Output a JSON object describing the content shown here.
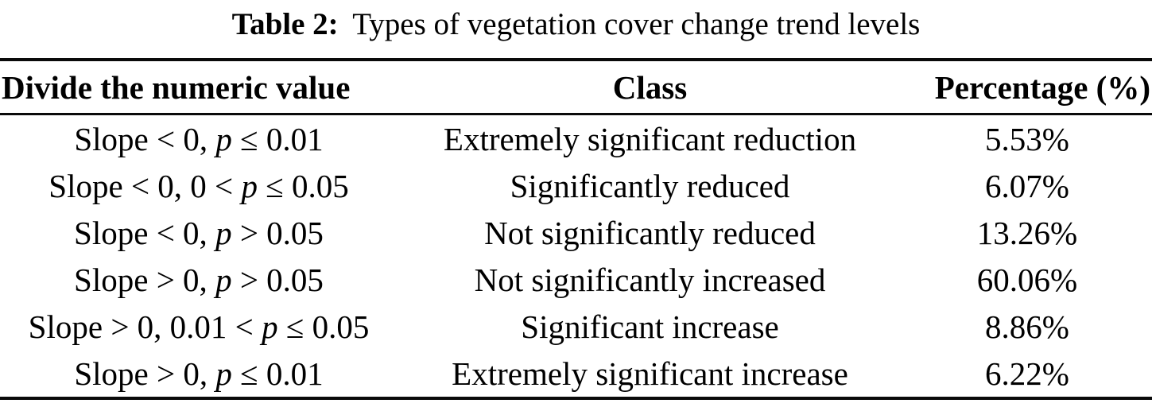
{
  "caption": {
    "label": "Table 2:",
    "text": "Types of vegetation cover change trend levels"
  },
  "table": {
    "headers": {
      "condition": "Divide the numeric value",
      "class": "Class",
      "percentage": "Percentage (%)"
    },
    "rows": [
      {
        "condition": {
          "before": "Slope < 0, ",
          "var": "p",
          "after": " ≤ 0.01"
        },
        "class": "Extremely significant reduction",
        "percentage": "5.53%"
      },
      {
        "condition": {
          "before": "Slope < 0, 0 < ",
          "var": "p",
          "after": " ≤ 0.05"
        },
        "class": "Significantly reduced",
        "percentage": "6.07%"
      },
      {
        "condition": {
          "before": "Slope < 0, ",
          "var": "p",
          "after": " > 0.05"
        },
        "class": "Not significantly reduced",
        "percentage": "13.26%"
      },
      {
        "condition": {
          "before": "Slope > 0, ",
          "var": "p",
          "after": " > 0.05"
        },
        "class": "Not significantly increased",
        "percentage": "60.06%"
      },
      {
        "condition": {
          "before": "Slope > 0, 0.01 < ",
          "var": "p",
          "after": " ≤ 0.05"
        },
        "class": "Significant increase",
        "percentage": "8.86%"
      },
      {
        "condition": {
          "before": "Slope > 0, ",
          "var": "p",
          "after": " ≤ 0.01"
        },
        "class": "Extremely significant increase",
        "percentage": "6.22%"
      }
    ]
  }
}
